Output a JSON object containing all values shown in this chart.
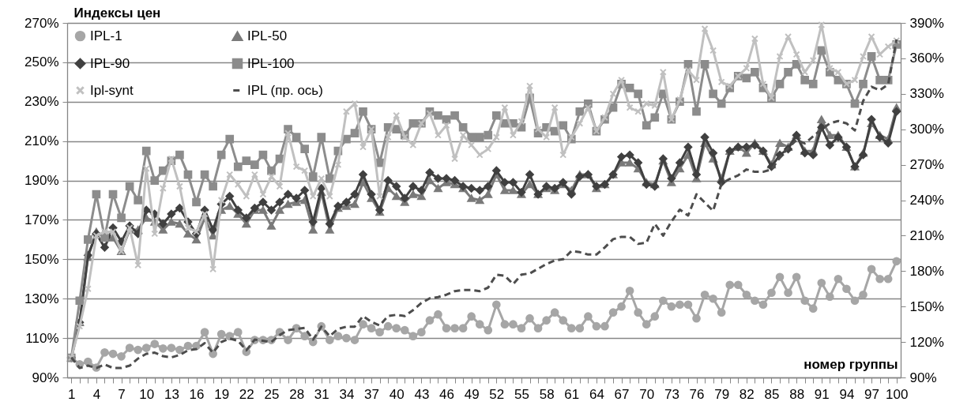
{
  "chart_data": {
    "type": "line",
    "ylabel": "Индексы цен",
    "xlabel": "номер группы",
    "categories": [
      "1",
      null,
      null,
      "4",
      null,
      null,
      "7",
      null,
      null,
      "10",
      null,
      null,
      "13",
      null,
      null,
      "16",
      null,
      null,
      "19",
      null,
      null,
      "22",
      null,
      null,
      "25",
      null,
      null,
      "28",
      null,
      null,
      "31",
      null,
      null,
      "34",
      null,
      null,
      "37",
      null,
      null,
      "40",
      null,
      null,
      "43",
      null,
      null,
      "46",
      null,
      null,
      "49",
      null,
      null,
      "52",
      null,
      null,
      "55",
      null,
      null,
      "58",
      null,
      null,
      "61",
      null,
      null,
      "64",
      null,
      null,
      "67",
      null,
      null,
      "70",
      null,
      null,
      "73",
      null,
      null,
      "76",
      null,
      null,
      "79",
      null,
      null,
      "82",
      null,
      null,
      "85",
      null,
      null,
      "88",
      null,
      null,
      "91",
      null,
      null,
      "94",
      null,
      null,
      "97",
      null,
      null,
      "100"
    ],
    "ylim": [
      90,
      270
    ],
    "yticks": [
      {
        "value": 90,
        "label": "90%"
      },
      {
        "value": 110,
        "label": "110%"
      },
      {
        "value": 130,
        "label": "130%"
      },
      {
        "value": 150,
        "label": "150%"
      },
      {
        "value": 170,
        "label": "170%"
      },
      {
        "value": 190,
        "label": "190%"
      },
      {
        "value": 210,
        "label": "210%"
      },
      {
        "value": 230,
        "label": "230%"
      },
      {
        "value": 250,
        "label": "250%"
      },
      {
        "value": 270,
        "label": "270%"
      }
    ],
    "y2lim": [
      90,
      390
    ],
    "y2ticks": [
      {
        "value": 90,
        "label": "90%"
      },
      {
        "value": 120,
        "label": "120%"
      },
      {
        "value": 150,
        "label": "150%"
      },
      {
        "value": 180,
        "label": "180%"
      },
      {
        "value": 210,
        "label": "210%"
      },
      {
        "value": 240,
        "label": "240%"
      },
      {
        "value": 270,
        "label": "270%"
      },
      {
        "value": 300,
        "label": "300%"
      },
      {
        "value": 330,
        "label": "330%"
      },
      {
        "value": 360,
        "label": "360%"
      },
      {
        "value": 390,
        "label": "390%"
      }
    ],
    "grid": "y",
    "legend": "top left",
    "series": [
      {
        "name": "IPL-1",
        "color": "#a6a6a6",
        "marker": "circle",
        "line_style": "solid",
        "values": [
          100,
          96.7,
          98,
          95,
          102.7,
          102,
          100.7,
          105,
          104,
          105,
          107,
          104.7,
          105,
          104,
          106,
          106,
          113,
          102,
          112,
          111,
          113,
          103,
          109,
          109,
          109,
          113,
          109,
          115,
          111,
          108,
          116,
          109,
          111,
          110,
          109,
          117,
          115,
          113,
          116,
          115,
          114,
          111,
          113,
          119,
          122,
          115,
          115,
          115,
          121,
          117,
          114,
          127,
          117,
          117,
          115,
          120,
          115,
          119,
          123,
          119,
          115,
          115,
          121,
          116,
          116,
          123,
          126,
          134,
          123,
          117,
          121,
          129,
          126,
          127,
          127,
          120,
          132,
          130,
          123,
          137,
          137,
          132,
          129,
          127,
          133,
          141,
          133,
          141,
          129,
          125,
          138,
          131,
          140,
          135,
          129,
          132,
          145,
          140,
          140,
          149
        ]
      },
      {
        "name": "IPL-50",
        "color": "#7a7a7a",
        "marker": "triangle",
        "line_style": "solid",
        "values": [
          100,
          118,
          151,
          164,
          161,
          161,
          154,
          165,
          165,
          171,
          169,
          165,
          169,
          168,
          163,
          160,
          171,
          162,
          175,
          177,
          173,
          168,
          175,
          175,
          167,
          175,
          178,
          179,
          180,
          165,
          184,
          165,
          176,
          177,
          178,
          189,
          181,
          174,
          186,
          182,
          179,
          183,
          182,
          190,
          186,
          189,
          188,
          186,
          181,
          180,
          183,
          193,
          185,
          185,
          183,
          188,
          183,
          186,
          185,
          188,
          185,
          193,
          193,
          186,
          188,
          193,
          199,
          199,
          196,
          189,
          188,
          200,
          189,
          196,
          203,
          191,
          209,
          201,
          191,
          205,
          207,
          204,
          209,
          205,
          198,
          209,
          207,
          213,
          205,
          205,
          221,
          213,
          213,
          207,
          197,
          204,
          219,
          213,
          211,
          227
        ]
      },
      {
        "name": "IPL-90",
        "color": "#404040",
        "marker": "diamond",
        "line_style": "solid",
        "values": [
          100,
          118,
          152,
          163,
          156,
          166,
          159,
          167,
          163,
          175,
          173,
          168,
          173,
          176,
          169,
          163,
          175,
          165,
          178,
          182,
          175,
          171,
          176,
          179,
          175,
          179,
          183,
          181,
          185,
          169,
          186,
          168,
          177,
          179,
          183,
          193,
          183,
          175,
          190,
          187,
          181,
          187,
          185,
          194,
          191,
          191,
          190,
          187,
          186,
          185,
          187,
          195,
          189,
          189,
          184,
          193,
          183,
          187,
          186,
          189,
          183,
          192,
          193,
          187,
          188,
          193,
          202,
          203,
          199,
          188,
          187,
          201,
          191,
          199,
          207,
          193,
          212,
          204,
          189,
          205,
          207,
          207,
          208,
          205,
          197,
          203,
          206,
          213,
          204,
          203,
          217,
          208,
          212,
          207,
          197,
          203,
          221,
          212,
          209,
          225
        ]
      },
      {
        "name": "IPL-100",
        "color": "#8c8c8c",
        "marker": "square",
        "line_style": "solid",
        "values": [
          100,
          129,
          160,
          183,
          161,
          183,
          171,
          187,
          180,
          205,
          190,
          195,
          200,
          203,
          193,
          179,
          193,
          187,
          203,
          211,
          197,
          200,
          198,
          203,
          195,
          201,
          216,
          212,
          206,
          192,
          212,
          191,
          205,
          211,
          214,
          225,
          216,
          199,
          217,
          216,
          213,
          219,
          219,
          225,
          223,
          221,
          223,
          217,
          212,
          212,
          213,
          223,
          219,
          219,
          217,
          232,
          214,
          217,
          215,
          218,
          211,
          225,
          229,
          215,
          221,
          227,
          239,
          237,
          234,
          218,
          222,
          234,
          221,
          230,
          249,
          225,
          249,
          234,
          229,
          237,
          243,
          242,
          245,
          237,
          232,
          239,
          245,
          249,
          241,
          239,
          256,
          245,
          241,
          239,
          229,
          239,
          253,
          241,
          241,
          259
        ]
      },
      {
        "name": "Ipl-synt",
        "color": "#c0c0c0",
        "marker": "cross",
        "line_style": "solid",
        "values": [
          100,
          116,
          135,
          162,
          164,
          164,
          154,
          166,
          147,
          196,
          163,
          186,
          201,
          187,
          166,
          164,
          173,
          145,
          180,
          193,
          188,
          182,
          193,
          183,
          192,
          187,
          214,
          197,
          195,
          182,
          191,
          182,
          198,
          225,
          229,
          207,
          216,
          182,
          212,
          223,
          212,
          208,
          219,
          224,
          213,
          218,
          201,
          213,
          208,
          203,
          206,
          212,
          227,
          213,
          220,
          238,
          216,
          212,
          227,
          203,
          212,
          219,
          227,
          215,
          222,
          234,
          241,
          227,
          225,
          229,
          228,
          245,
          221,
          231,
          246,
          241,
          267,
          256,
          240,
          238,
          243,
          247,
          262,
          239,
          232,
          253,
          263,
          254,
          245,
          251,
          269,
          247,
          245,
          239,
          241,
          253,
          263,
          254,
          258,
          261
        ]
      },
      {
        "name": "IPL (пр. ось)",
        "color": "#4d4d4d",
        "marker": "none",
        "line_style": "dashed",
        "axis": "y2",
        "values": [
          107,
          98,
          100,
          98,
          101,
          98,
          98,
          100,
          106,
          110,
          111,
          108,
          107,
          109,
          113,
          114,
          119,
          111,
          120,
          123,
          121,
          113,
          122,
          121,
          120,
          126,
          130,
          131,
          132,
          122,
          133,
          125,
          131,
          133,
          133,
          142,
          137,
          134,
          142,
          143,
          142,
          147,
          153,
          157,
          158,
          160,
          163,
          164,
          164,
          163,
          166,
          177,
          176,
          169,
          177,
          178,
          182,
          186,
          189,
          190,
          197,
          196,
          194,
          194,
          200,
          207,
          209,
          209,
          203,
          204,
          220,
          210,
          222,
          232,
          227,
          245,
          238,
          231,
          254,
          258,
          261,
          266,
          264,
          264,
          266,
          276,
          284,
          291,
          288,
          294,
          300,
          305,
          307,
          305,
          299,
          324,
          336,
          333,
          338,
          376
        ]
      }
    ]
  }
}
